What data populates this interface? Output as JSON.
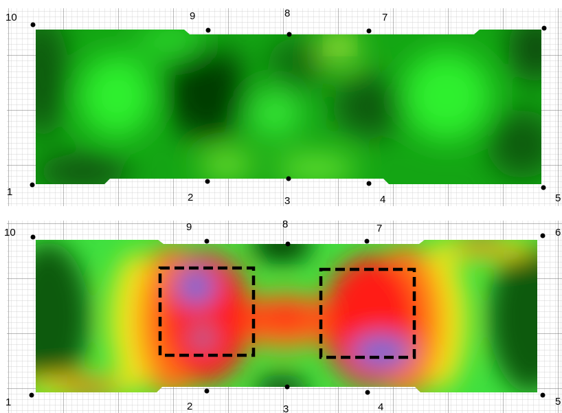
{
  "panels": [
    {
      "id": "top",
      "labels": [
        "10",
        "9",
        "8",
        "7",
        "1",
        "2",
        "3",
        "4",
        "5"
      ],
      "colors": {
        "dark": "#063d06",
        "mid": "#14a514",
        "bright": "#2df02d",
        "yellow": "#d8e82a"
      }
    },
    {
      "id": "bottom",
      "labels": [
        "10",
        "9",
        "8",
        "7",
        "6",
        "1",
        "2",
        "3",
        "4",
        "5"
      ],
      "colors": {
        "dark": "#063d06",
        "green": "#3fe03f",
        "yellow": "#f0ea1e",
        "orange": "#ff7a14",
        "red": "#ff1a12",
        "blue": "#6a6ed8"
      },
      "highlight_box_count": 2
    }
  ]
}
